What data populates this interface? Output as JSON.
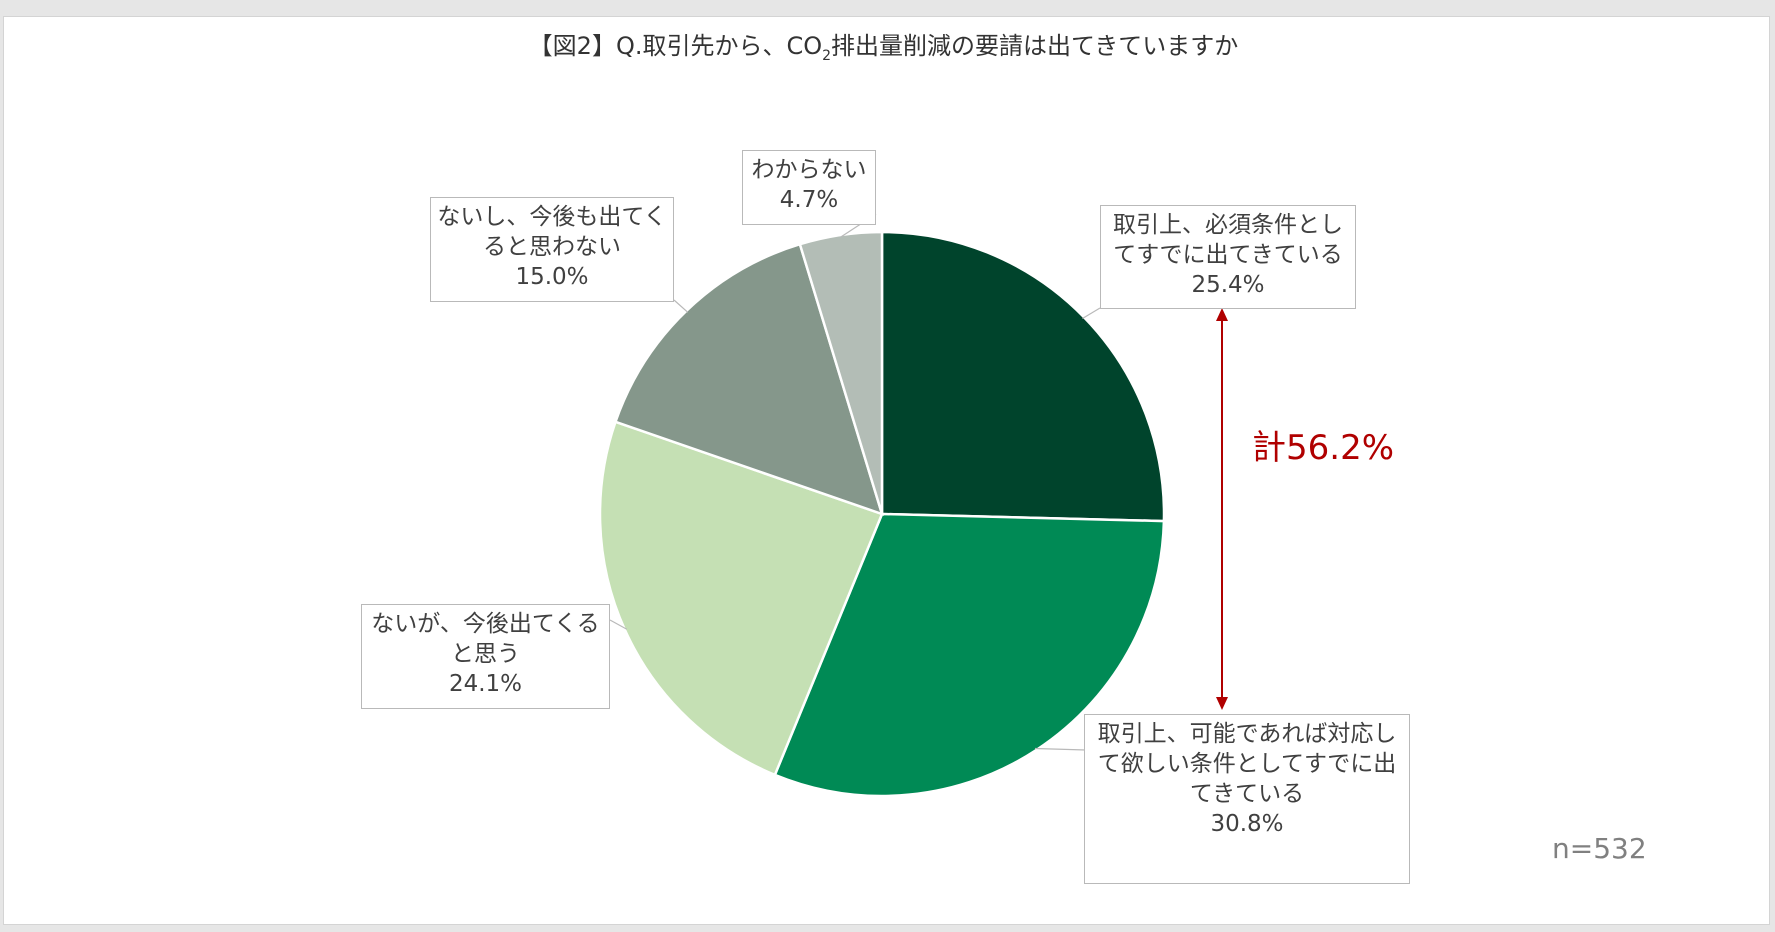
{
  "title": {
    "main": "【図2】Q.取引先から、CO",
    "sub": "2",
    "rest": "排出量削減の要請は出てきていますか"
  },
  "sample_size": "n=532",
  "total_annotation": "計56.2%",
  "colors": {
    "total_annotation": "#b00000",
    "slice_1": "#00442c",
    "slice_2": "#008a55",
    "slice_3": "#c5e0b4",
    "slice_4": "#85978b",
    "slice_5": "#b3bdb6"
  },
  "chart_data": {
    "type": "pie",
    "title": "【図2】Q.取引先から、CO2排出量削減の要請は出てきていますか",
    "slices": [
      {
        "label": "取引上、必須条件としてすでに出てきている",
        "value": 25.4,
        "value_label": "25.4%",
        "color": "#00442c"
      },
      {
        "label": "取引上、可能であれば対応して欲しい条件としてすでに出てきている",
        "value": 30.8,
        "value_label": "30.8%",
        "color": "#008a55"
      },
      {
        "label": "ないが、今後出てくると思う",
        "value": 24.1,
        "value_label": "24.1%",
        "color": "#c5e0b4"
      },
      {
        "label": "ないし、今後も出てくると思わない",
        "value": 15.0,
        "value_label": "15.0%",
        "color": "#85978b"
      },
      {
        "label": "わからない",
        "value": 4.7,
        "value_label": "4.7%",
        "color": "#b3bdb6"
      }
    ],
    "labels_display": [
      [
        "取引上、必須条件とし",
        "てすでに出てきている"
      ],
      [
        "取引上、可能であれば対応し",
        "て欲しい条件としてすでに出",
        "てきている"
      ],
      [
        "ないが、今後出てくる",
        "と思う"
      ],
      [
        "ないし、今後も出てく",
        "ると思わない"
      ],
      [
        "わからない"
      ]
    ]
  }
}
